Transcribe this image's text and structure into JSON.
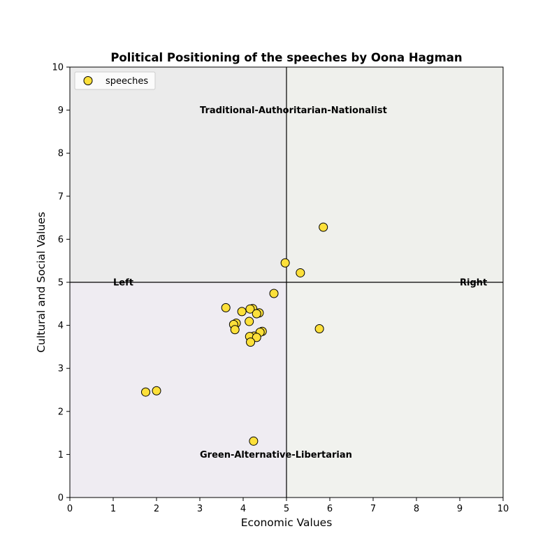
{
  "chart_data": {
    "type": "scatter",
    "title": "Political Positioning of the speeches by Oona Hagman",
    "xlabel": "Economic Values",
    "ylabel": "Cultural and Social Values",
    "xlim": [
      0,
      10
    ],
    "ylim": [
      0,
      10
    ],
    "xticks": [
      "0",
      "1",
      "2",
      "3",
      "4",
      "5",
      "6",
      "7",
      "8",
      "9",
      "10"
    ],
    "yticks": [
      "0",
      "1",
      "2",
      "3",
      "4",
      "5",
      "6",
      "7",
      "8",
      "9",
      "10"
    ],
    "grid": false,
    "legend": {
      "placement": "top-left",
      "entries": [
        "speeches"
      ]
    },
    "quadrant_colors": {
      "top_left": "#ebebeb",
      "top_right": "#eff0ec",
      "bottom_left": "#efecf2",
      "bottom_right": "#f1f2ee"
    },
    "marker_color": "#fde03a",
    "marker_edge_color": "#000000",
    "dividers": {
      "x": 5,
      "y": 5
    },
    "annotations": [
      {
        "text": "Traditional-Authoritarian-Nationalist",
        "x": 3,
        "y": 9
      },
      {
        "text": "Green-Alternative-Libertarian",
        "x": 3,
        "y": 1
      },
      {
        "text": "Left",
        "x": 1,
        "y": 5
      },
      {
        "text": "Right",
        "x": 9,
        "y": 5
      }
    ],
    "series": [
      {
        "name": "speeches",
        "points": [
          {
            "x": 5.85,
            "y": 6.28
          },
          {
            "x": 4.97,
            "y": 5.45
          },
          {
            "x": 5.32,
            "y": 5.22
          },
          {
            "x": 4.71,
            "y": 4.74
          },
          {
            "x": 3.6,
            "y": 4.41
          },
          {
            "x": 4.22,
            "y": 4.39
          },
          {
            "x": 4.16,
            "y": 4.38
          },
          {
            "x": 3.97,
            "y": 4.32
          },
          {
            "x": 4.37,
            "y": 4.29
          },
          {
            "x": 4.31,
            "y": 4.27
          },
          {
            "x": 4.14,
            "y": 4.09
          },
          {
            "x": 3.84,
            "y": 4.05
          },
          {
            "x": 3.78,
            "y": 4.02
          },
          {
            "x": 5.76,
            "y": 3.92
          },
          {
            "x": 3.81,
            "y": 3.9
          },
          {
            "x": 4.44,
            "y": 3.86
          },
          {
            "x": 4.39,
            "y": 3.84
          },
          {
            "x": 4.25,
            "y": 3.75
          },
          {
            "x": 4.15,
            "y": 3.74
          },
          {
            "x": 4.31,
            "y": 3.72
          },
          {
            "x": 4.17,
            "y": 3.61
          },
          {
            "x": 2.0,
            "y": 2.48
          },
          {
            "x": 1.75,
            "y": 2.45
          },
          {
            "x": 4.24,
            "y": 1.31
          }
        ]
      }
    ]
  }
}
